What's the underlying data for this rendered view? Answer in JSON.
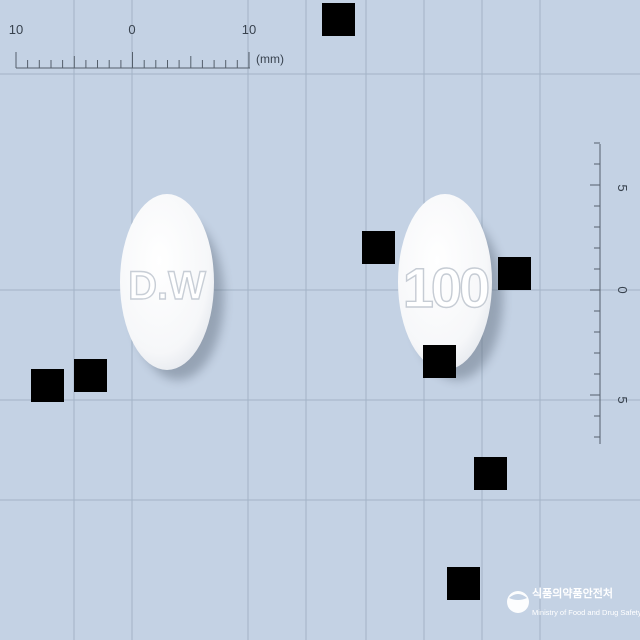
{
  "ruler_top": {
    "ticks": [
      "10",
      "0",
      "10"
    ],
    "unit": "(mm)"
  },
  "ruler_right": {
    "ticks": [
      "5",
      "0",
      "5"
    ]
  },
  "pills": {
    "left_imprint": "D.W",
    "right_imprint": "100"
  },
  "logo": {
    "korean": "식품의약품안전처",
    "english": "Ministry of Food and Drug Safety"
  },
  "colors": {
    "background": "#c4d2e4",
    "grid": "#9aabbf",
    "pill": "#ffffff",
    "redaction": "#000000"
  }
}
